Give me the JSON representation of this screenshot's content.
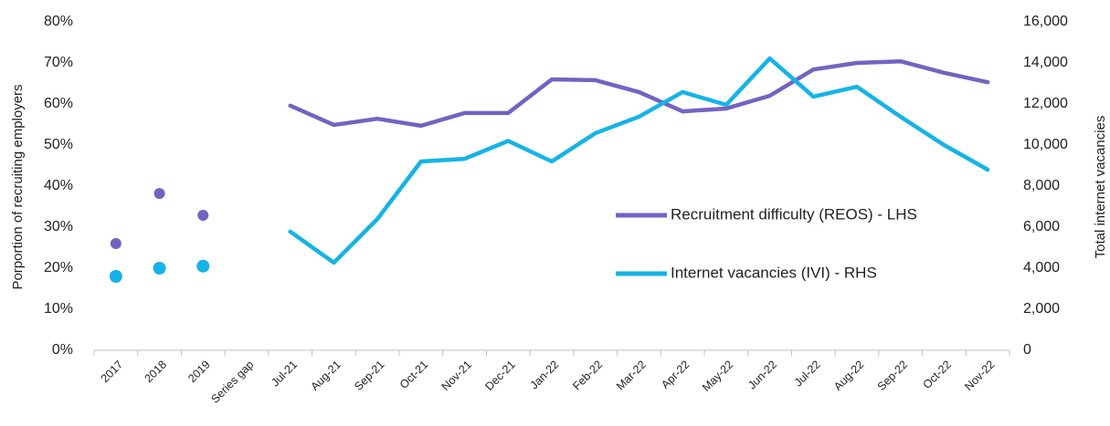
{
  "chart_data": {
    "type": "line",
    "categories": [
      "2017",
      "2018",
      "2019",
      "Series gap",
      "Jul-21",
      "Aug-21",
      "Sep-21",
      "Oct-21",
      "Nov-21",
      "Dec-21",
      "Jan-22",
      "Feb-22",
      "Mar-22",
      "Apr-22",
      "May-22",
      "Jun-22",
      "Jul-22",
      "Aug-22",
      "Sep-22",
      "Oct-22",
      "Nov-22"
    ],
    "ylabel": "Porportion of recruiting employers",
    "y2label": "Total internet vacancies",
    "ylim": [
      0,
      80
    ],
    "yticks": [
      {
        "value": 0,
        "label": "0%"
      },
      {
        "value": 10,
        "label": "10%"
      },
      {
        "value": 20,
        "label": "20%"
      },
      {
        "value": 30,
        "label": "30%"
      },
      {
        "value": 40,
        "label": "40%"
      },
      {
        "value": 50,
        "label": "50%"
      },
      {
        "value": 60,
        "label": "60%"
      },
      {
        "value": 70,
        "label": "70%"
      },
      {
        "value": 80,
        "label": "80%"
      }
    ],
    "y2lim": [
      0,
      16000
    ],
    "y2ticks": [
      0,
      {
        "value": 2000,
        "label": "2,000"
      },
      {
        "value": 4000,
        "label": "4,000"
      },
      {
        "value": 6000,
        "label": "6,000"
      },
      {
        "value": 8000,
        "label": "8,000"
      },
      {
        "value": 10000,
        "label": "10,000"
      },
      {
        "value": 12000,
        "label": "12,000"
      },
      {
        "value": 14000,
        "label": "14,000"
      },
      {
        "value": 16000,
        "label": "16,000"
      }
    ],
    "legend": "center-right",
    "series": [
      {
        "name": "Recruitment difficulty (REOS) - LHS",
        "color": "#7462c2",
        "values": [
          26,
          38.2,
          32.9,
          null,
          59.6,
          54.9,
          56.4,
          54.7,
          57.8,
          57.8,
          66,
          65.8,
          62.9,
          58.2,
          58.9,
          62,
          68.4,
          70,
          70.4,
          67.6,
          65.3
        ]
      },
      {
        "name": "Internet vacancies (IVI) - RHS",
        "color": "#16b3e6",
        "axis": "y2",
        "values": [
          3600,
          4000,
          4100,
          null,
          5780,
          4270,
          6400,
          9200,
          9330,
          10200,
          9200,
          10580,
          11380,
          12580,
          11960,
          14220,
          12360,
          12840,
          11380,
          10000,
          8800
        ]
      }
    ]
  }
}
